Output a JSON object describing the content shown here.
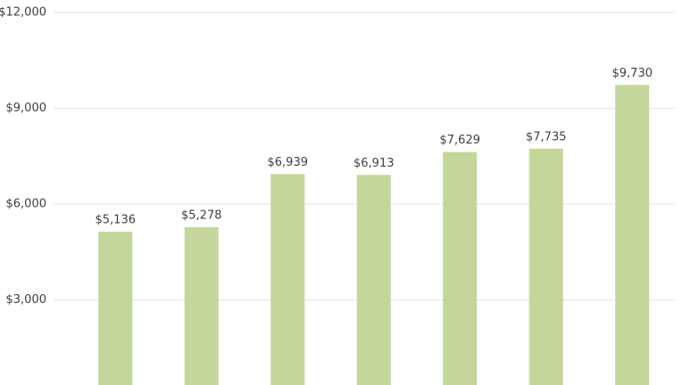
{
  "chart_data": {
    "type": "bar",
    "categories": [
      null,
      null,
      null,
      null,
      null,
      null,
      null
    ],
    "values": [
      5136,
      5278,
      6939,
      6913,
      7629,
      7735,
      9730
    ],
    "value_labels": [
      "$5,136",
      "$5,278",
      "$6,939",
      "$6,913",
      "$7,629",
      "$7,735",
      "$9,730"
    ],
    "color": "#c4d69b",
    "ylim": [
      0,
      12000
    ],
    "yticks": [
      {
        "value": 3000,
        "label": "$3,000"
      },
      {
        "value": 6000,
        "label": "$6,000"
      },
      {
        "value": 9000,
        "label": "$9,000"
      },
      {
        "value": 12000,
        "label": "$12,000"
      }
    ],
    "grid": true
  }
}
